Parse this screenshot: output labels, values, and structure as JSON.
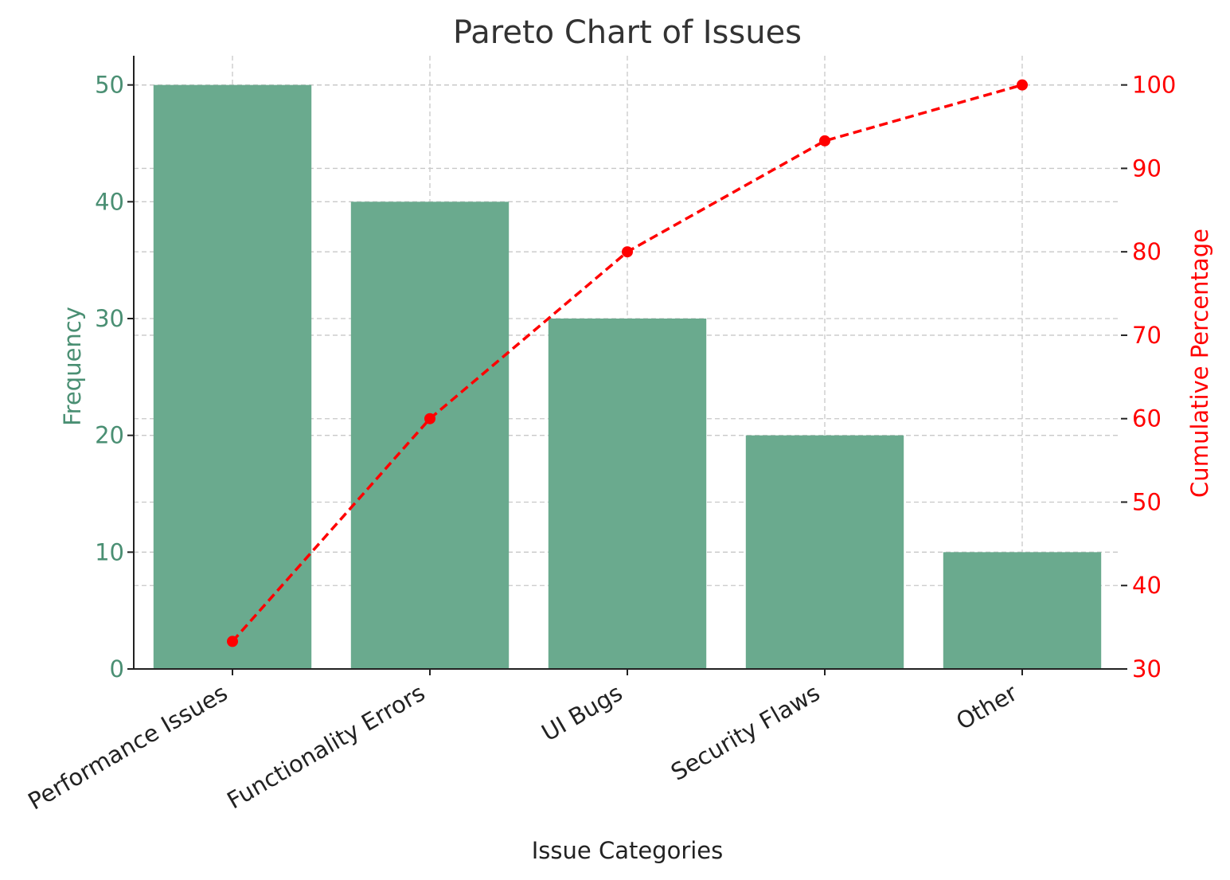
{
  "chart_data": {
    "type": "bar",
    "title": "Pareto Chart of Issues",
    "xlabel": "Issue Categories",
    "ylabel": "Frequency",
    "y2label": "Cumulative Percentage",
    "categories": [
      "Performance Issues",
      "Functionality Errors",
      "UI Bugs",
      "Security Flaws",
      "Other"
    ],
    "series": [
      {
        "type": "bar",
        "axis": "left",
        "values": [
          50,
          40,
          30,
          20,
          10
        ]
      },
      {
        "type": "line",
        "axis": "right",
        "values": [
          33.3,
          60.0,
          80.0,
          93.3,
          100.0
        ]
      }
    ],
    "ylim": [
      0,
      52.5
    ],
    "y2lim": [
      30,
      103.5
    ],
    "yticks": [
      0,
      10,
      20,
      30,
      40,
      50
    ],
    "y2ticks": [
      30,
      40,
      50,
      60,
      70,
      80,
      90,
      100
    ],
    "grid": true,
    "colors": {
      "bar": "#6aaa8e",
      "left_axis": "#4a8f73",
      "line": "#ff0000",
      "spine": "#222222"
    }
  }
}
